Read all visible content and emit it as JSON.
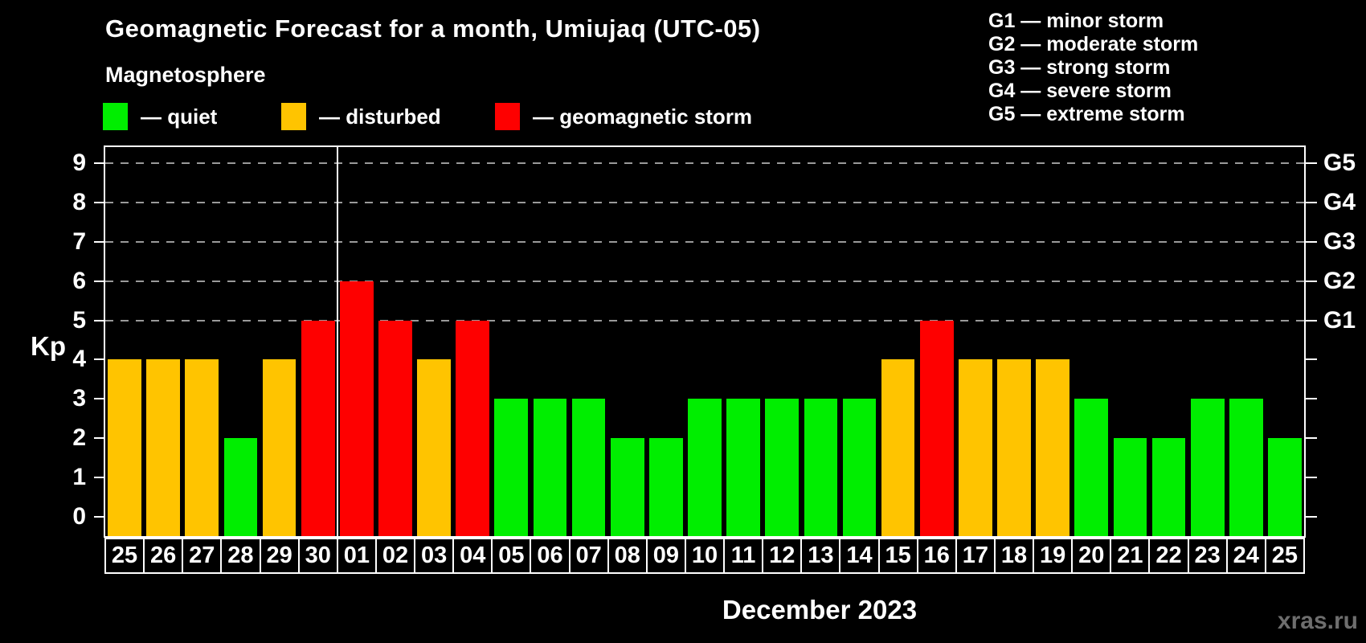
{
  "header": {
    "title": "Geomagnetic Forecast for a month, Umiujaq (UTC-05)",
    "subtitle": "Magnetosphere"
  },
  "legend": {
    "items": [
      {
        "label": "— quiet",
        "status": "quiet"
      },
      {
        "label": "— disturbed",
        "status": "disturbed"
      },
      {
        "label": "— geomagnetic storm",
        "status": "storm"
      }
    ]
  },
  "storm_scale_legend": [
    "G1 — minor storm",
    "G2 — moderate storm",
    "G3 — strong storm",
    "G4 — severe storm",
    "G5 — extreme storm"
  ],
  "chart_data": {
    "type": "bar",
    "title": "Geomagnetic Forecast for a month, Umiujaq (UTC-05)",
    "subtitle": "Magnetosphere",
    "ylabel": "Kp",
    "xlabel": "December 2023",
    "ylim": [
      -0.5,
      9.4
    ],
    "yticks": [
      0,
      1,
      2,
      3,
      4,
      5,
      6,
      7,
      8,
      9
    ],
    "gridlines_at_kp": [
      5,
      6,
      7,
      8,
      9
    ],
    "grid": "dashed horizontal at storm levels only",
    "right_axis_labels": [
      {
        "kp": 5,
        "label": "G1"
      },
      {
        "kp": 6,
        "label": "G2"
      },
      {
        "kp": 7,
        "label": "G3"
      },
      {
        "kp": 8,
        "label": "G4"
      },
      {
        "kp": 9,
        "label": "G5"
      }
    ],
    "categories": [
      "25",
      "26",
      "27",
      "28",
      "29",
      "30",
      "01",
      "02",
      "03",
      "04",
      "05",
      "06",
      "07",
      "08",
      "09",
      "10",
      "11",
      "12",
      "13",
      "14",
      "15",
      "16",
      "17",
      "18",
      "19",
      "20",
      "21",
      "22",
      "23",
      "24",
      "25"
    ],
    "values": [
      4,
      4,
      4,
      2,
      4,
      5,
      6,
      5,
      4,
      5,
      3,
      3,
      3,
      2,
      2,
      3,
      3,
      3,
      3,
      3,
      4,
      5,
      4,
      4,
      4,
      3,
      2,
      2,
      3,
      3,
      2
    ],
    "statuses": [
      "disturbed",
      "disturbed",
      "disturbed",
      "quiet",
      "disturbed",
      "storm",
      "storm",
      "storm",
      "disturbed",
      "storm",
      "quiet",
      "quiet",
      "quiet",
      "quiet",
      "quiet",
      "quiet",
      "quiet",
      "quiet",
      "quiet",
      "quiet",
      "disturbed",
      "storm",
      "disturbed",
      "disturbed",
      "disturbed",
      "quiet",
      "quiet",
      "quiet",
      "quiet",
      "quiet",
      "quiet"
    ],
    "month_separator_after_category_index": 5,
    "colors": {
      "quiet": "#00ee00",
      "disturbed": "#ffc400",
      "storm": "#fe0000",
      "gridline": "#9a9a9a",
      "axis": "#ffffff",
      "background": "#000000"
    }
  },
  "footer": {
    "xaxis_title": "December 2023",
    "watermark": "xras.ru"
  }
}
